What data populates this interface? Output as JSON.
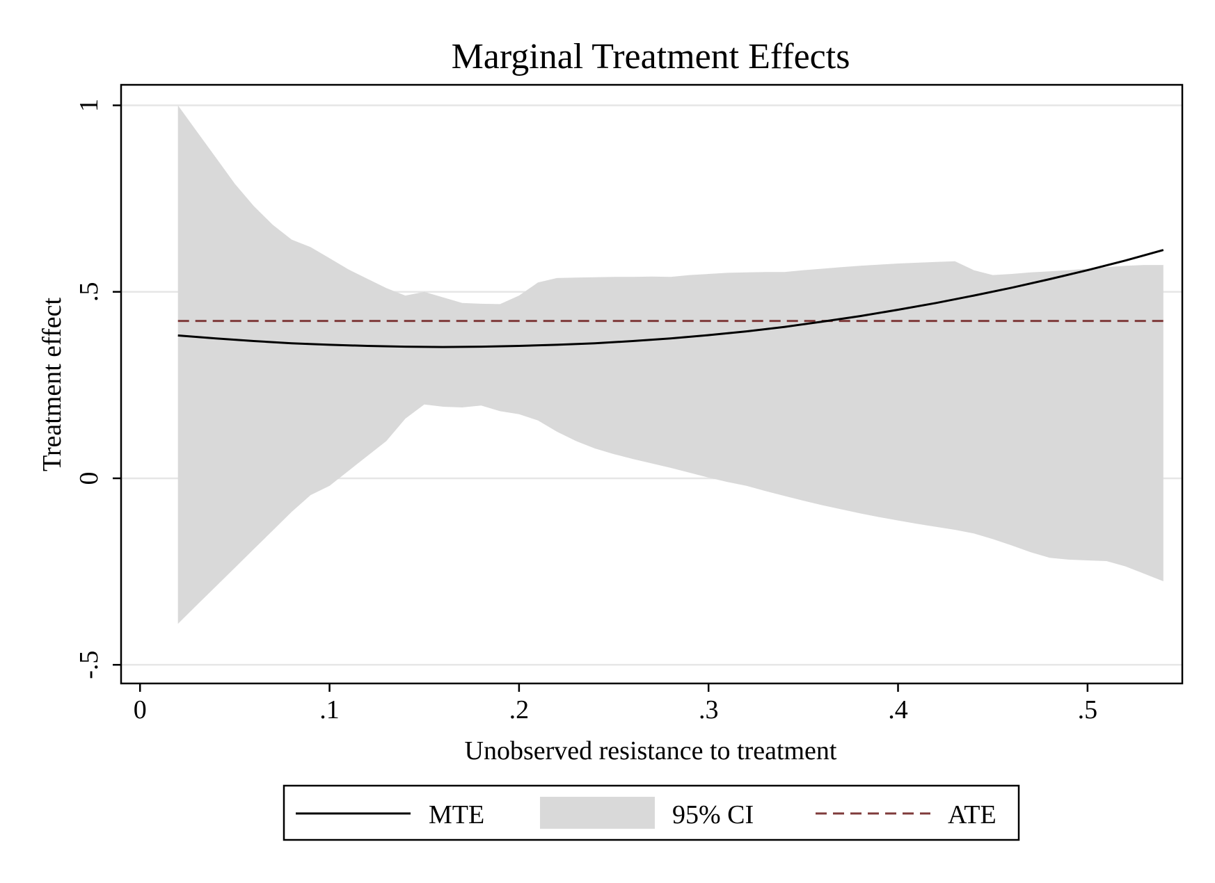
{
  "chart_data": {
    "type": "line",
    "title": "Marginal Treatment Effects",
    "xlabel": "Unobserved resistance to treatment",
    "ylabel": "Treatment effect",
    "xlim": [
      -0.01,
      0.55
    ],
    "ylim": [
      -0.55,
      1.055
    ],
    "xticks": [
      {
        "value": 0,
        "label": "0"
      },
      {
        "value": 0.1,
        "label": ".1"
      },
      {
        "value": 0.2,
        "label": ".2"
      },
      {
        "value": 0.3,
        "label": ".3"
      },
      {
        "value": 0.4,
        "label": ".4"
      },
      {
        "value": 0.5,
        "label": ".5"
      }
    ],
    "yticks": [
      {
        "value": 1,
        "label": "1"
      },
      {
        "value": 0.5,
        "label": ".5"
      },
      {
        "value": 0,
        "label": "0"
      },
      {
        "value": -0.5,
        "label": "-.5"
      }
    ],
    "grid": true,
    "legend_position": "bottom",
    "series": [
      {
        "name": "MTE",
        "kind": "line",
        "color": "#000000",
        "x": [
          0.02,
          0.04,
          0.06,
          0.08,
          0.1,
          0.12,
          0.14,
          0.16,
          0.18,
          0.2,
          0.22,
          0.24,
          0.26,
          0.28,
          0.3,
          0.32,
          0.34,
          0.36,
          0.38,
          0.4,
          0.42,
          0.44,
          0.46,
          0.48,
          0.5,
          0.52,
          0.54
        ],
        "y": [
          0.383,
          0.375,
          0.368,
          0.362,
          0.358,
          0.355,
          0.353,
          0.352,
          0.353,
          0.355,
          0.358,
          0.362,
          0.368,
          0.375,
          0.384,
          0.394,
          0.406,
          0.42,
          0.435,
          0.452,
          0.47,
          0.49,
          0.511,
          0.534,
          0.558,
          0.584,
          0.612
        ]
      },
      {
        "name": "95% CI",
        "kind": "band",
        "color": "#d9d9d9",
        "x": [
          0.02,
          0.03,
          0.04,
          0.05,
          0.06,
          0.07,
          0.08,
          0.09,
          0.1,
          0.11,
          0.12,
          0.13,
          0.14,
          0.15,
          0.16,
          0.17,
          0.18,
          0.19,
          0.2,
          0.21,
          0.22,
          0.23,
          0.24,
          0.25,
          0.26,
          0.27,
          0.28,
          0.29,
          0.3,
          0.31,
          0.32,
          0.33,
          0.34,
          0.35,
          0.36,
          0.37,
          0.38,
          0.39,
          0.4,
          0.41,
          0.42,
          0.43,
          0.44,
          0.45,
          0.46,
          0.47,
          0.48,
          0.49,
          0.5,
          0.51,
          0.52,
          0.53,
          0.54
        ],
        "upper": [
          1.0,
          0.93,
          0.86,
          0.79,
          0.73,
          0.68,
          0.64,
          0.62,
          0.59,
          0.56,
          0.535,
          0.51,
          0.49,
          0.5,
          0.485,
          0.47,
          0.468,
          0.467,
          0.49,
          0.525,
          0.537,
          0.538,
          0.539,
          0.54,
          0.54,
          0.541,
          0.54,
          0.545,
          0.548,
          0.551,
          0.552,
          0.553,
          0.553,
          0.558,
          0.562,
          0.566,
          0.57,
          0.573,
          0.576,
          0.578,
          0.58,
          0.582,
          0.558,
          0.545,
          0.548,
          0.552,
          0.555,
          0.558,
          0.562,
          0.566,
          0.57,
          0.572,
          0.572
        ],
        "lower": [
          -0.39,
          -0.34,
          -0.29,
          -0.24,
          -0.19,
          -0.14,
          -0.09,
          -0.045,
          -0.02,
          0.02,
          0.06,
          0.1,
          0.16,
          0.198,
          0.192,
          0.19,
          0.195,
          0.18,
          0.172,
          0.155,
          0.125,
          0.1,
          0.08,
          0.065,
          0.052,
          0.04,
          0.028,
          0.015,
          0.002,
          -0.01,
          -0.02,
          -0.034,
          -0.047,
          -0.06,
          -0.072,
          -0.083,
          -0.094,
          -0.104,
          -0.113,
          -0.122,
          -0.13,
          -0.138,
          -0.148,
          -0.163,
          -0.18,
          -0.198,
          -0.213,
          -0.218,
          -0.22,
          -0.222,
          -0.236,
          -0.256,
          -0.276
        ]
      },
      {
        "name": "ATE",
        "kind": "hline",
        "color": "#7f3b3b",
        "y": 0.422,
        "x": [
          0.02,
          0.54
        ]
      }
    ]
  }
}
